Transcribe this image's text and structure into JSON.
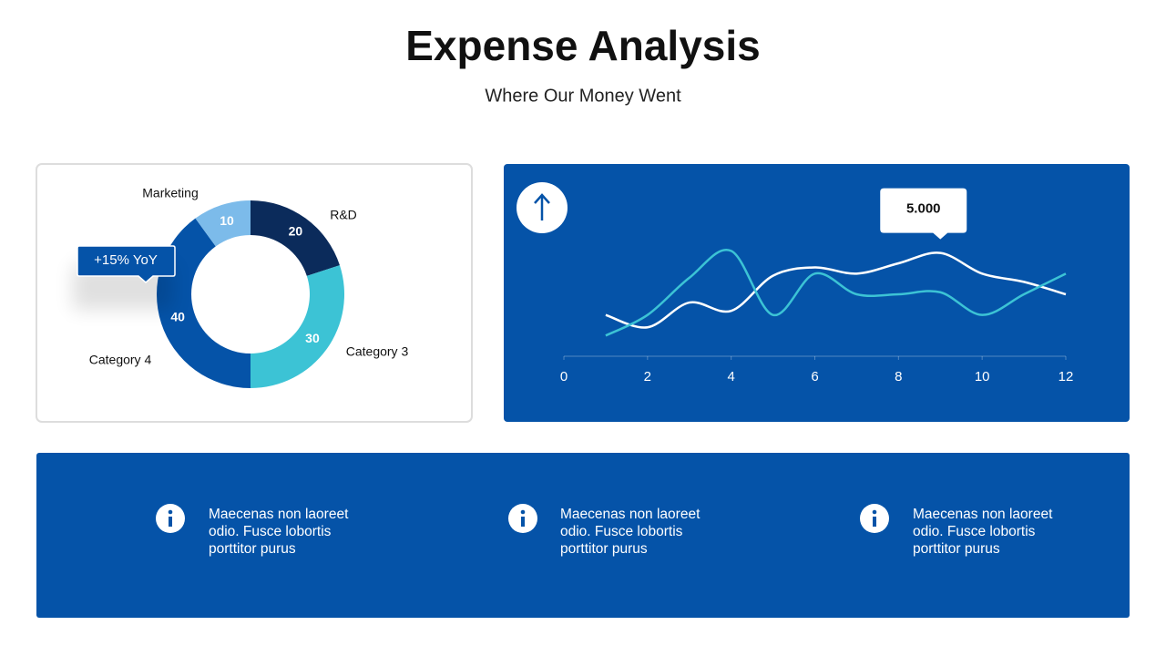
{
  "header": {
    "title": "Expense Analysis",
    "subtitle": "Where Our Money Went"
  },
  "chart_data": [
    {
      "type": "donut",
      "categories": [
        "R&D",
        "Category 3",
        "Category 4",
        "Marketing"
      ],
      "values": [
        20,
        30,
        40,
        10
      ],
      "colors": [
        "#0b2b5b",
        "#3cc3d5",
        "#0553a8",
        "#7cbbea"
      ],
      "annotation": "+15% YoY"
    },
    {
      "type": "line",
      "x": [
        1,
        2,
        3,
        4,
        5,
        6,
        7,
        8,
        9,
        10,
        11,
        12
      ],
      "xlim": [
        0,
        12
      ],
      "xticks": [
        0,
        2,
        4,
        6,
        8,
        10,
        12
      ],
      "ylim": [
        0,
        6
      ],
      "series": [
        {
          "color": "#ffffff",
          "values": [
            2.0,
            1.4,
            2.6,
            2.2,
            3.9,
            4.3,
            4.0,
            4.5,
            5.0,
            4.0,
            3.6,
            3.0
          ],
          "value_labels": [
            null,
            null,
            null,
            null,
            null,
            null,
            null,
            null,
            "5.000",
            null,
            null,
            null
          ]
        },
        {
          "color": "#3cc3d5",
          "values": [
            1.0,
            2.0,
            3.8,
            5.1,
            2.0,
            4.0,
            3.0,
            3.0,
            3.1,
            2.0,
            3.0,
            4.0
          ]
        }
      ]
    }
  ],
  "info": [
    {
      "text": "Maecenas non laoreet odio. Fusce lobortis porttitor purus"
    },
    {
      "text": "Maecenas non laoreet odio. Fusce lobortis porttitor purus"
    },
    {
      "text": "Maecenas non laoreet odio. Fusce lobortis porttitor purus"
    }
  ]
}
